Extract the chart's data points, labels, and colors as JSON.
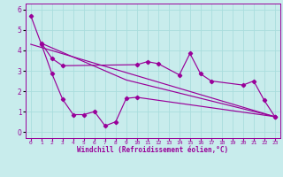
{
  "xlabel": "Windchill (Refroidissement éolien,°C)",
  "background_color": "#c8ecec",
  "line_color": "#990099",
  "grid_color": "#aadddd",
  "xlim": [
    -0.5,
    23.5
  ],
  "ylim": [
    -0.3,
    6.3
  ],
  "yticks": [
    0,
    1,
    2,
    3,
    4,
    5,
    6
  ],
  "xtick_labels": [
    "0",
    "1",
    "2",
    "3",
    "4",
    "5",
    "6",
    "7",
    "8",
    "9",
    "10",
    "11",
    "12",
    "13",
    "14",
    "15",
    "16",
    "17",
    "18",
    "19",
    "20",
    "21",
    "22",
    "23"
  ],
  "line1_x": [
    0,
    1,
    2,
    3,
    4,
    5,
    6,
    7,
    8,
    9,
    10,
    23
  ],
  "line1_y": [
    5.7,
    4.3,
    2.85,
    1.6,
    0.85,
    0.85,
    1.0,
    0.3,
    0.5,
    1.65,
    1.7,
    0.75
  ],
  "line2_x": [
    1,
    2,
    3,
    10,
    11,
    12,
    14,
    15,
    16,
    17,
    20,
    21,
    22,
    23
  ],
  "line2_y": [
    4.35,
    3.6,
    3.25,
    3.3,
    3.45,
    3.35,
    2.8,
    3.85,
    2.85,
    2.5,
    2.3,
    2.5,
    1.55,
    0.75
  ],
  "line3_x": [
    0,
    23
  ],
  "line3_y": [
    4.3,
    0.75
  ],
  "line4_x": [
    1,
    9,
    23
  ],
  "line4_y": [
    4.35,
    2.55,
    0.75
  ]
}
